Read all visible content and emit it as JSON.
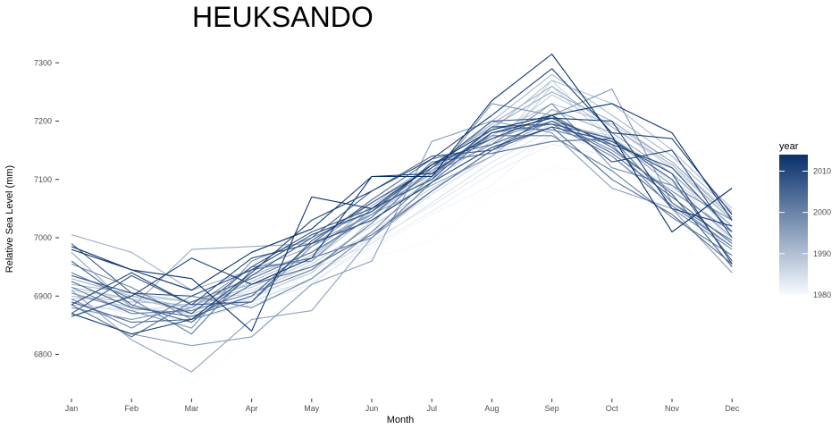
{
  "chart_data": {
    "type": "line",
    "title": "HEUKSANDO",
    "xlabel": "Month",
    "ylabel": "Relative Sea Level (mm)",
    "categories": [
      "Jan",
      "Feb",
      "Mar",
      "Apr",
      "May",
      "Jun",
      "Jul",
      "Aug",
      "Sep",
      "Oct",
      "Nov",
      "Dec"
    ],
    "y_ticks": [
      6800,
      6900,
      7000,
      7100,
      7200,
      7300
    ],
    "ylim": [
      6730,
      7330
    ],
    "grid": false,
    "legend": {
      "title": "year",
      "type": "colorbar",
      "placement": "right",
      "range": [
        1980,
        2014
      ],
      "ticks": [
        1980,
        1990,
        2000,
        2010
      ],
      "color_low": "#f7fbff",
      "color_high": "#08306b"
    },
    "series": [
      {
        "year": 1980,
        "values": [
          6880,
          6870,
          6750,
          6830,
          6935,
          6965,
          6995,
          7075,
          7120,
          7115,
          7040,
          6940
        ]
      },
      {
        "year": 1981,
        "values": [
          6875,
          6860,
          6880,
          6890,
          6940,
          6980,
          7040,
          7090,
          7180,
          7165,
          7075,
          6965
        ]
      },
      {
        "year": 1982,
        "values": [
          6865,
          6890,
          6905,
          6900,
          6925,
          6985,
          7045,
          7110,
          7160,
          7140,
          7060,
          6980
        ]
      },
      {
        "year": 1983,
        "values": [
          6890,
          6870,
          6860,
          6885,
          6920,
          6995,
          7055,
          7120,
          7175,
          7150,
          7085,
          6990
        ]
      },
      {
        "year": 1984,
        "values": [
          6900,
          6880,
          6870,
          6895,
          6945,
          6990,
          7060,
          7130,
          7185,
          7170,
          7100,
          7000
        ]
      },
      {
        "year": 1985,
        "values": [
          6910,
          6895,
          6880,
          6890,
          6930,
          7000,
          7075,
          7140,
          7195,
          7175,
          7095,
          6995
        ]
      },
      {
        "year": 1986,
        "values": [
          6885,
          6875,
          6885,
          6910,
          6950,
          7010,
          7080,
          7150,
          7270,
          7170,
          7110,
          7010
        ]
      },
      {
        "year": 1987,
        "values": [
          6895,
          6900,
          6890,
          6905,
          6955,
          7020,
          7085,
          7140,
          7260,
          7165,
          7100,
          7020
        ]
      },
      {
        "year": 1988,
        "values": [
          6905,
          6880,
          6870,
          6900,
          6940,
          7030,
          7100,
          7165,
          7245,
          7190,
          7120,
          7030
        ]
      },
      {
        "year": 1989,
        "values": [
          6900,
          6890,
          6885,
          6915,
          6960,
          7040,
          7105,
          7175,
          7230,
          7195,
          7130,
          7040
        ]
      },
      {
        "year": 1990,
        "values": [
          6915,
          6895,
          6875,
          6925,
          6970,
          7045,
          7110,
          7185,
          7270,
          7230,
          7150,
          7050
        ]
      },
      {
        "year": 1991,
        "values": [
          6920,
          6905,
          6890,
          6920,
          6965,
          7050,
          7115,
          7200,
          7280,
          7210,
          7140,
          7045
        ]
      },
      {
        "year": 1992,
        "values": [
          6930,
          6900,
          6880,
          6935,
          6975,
          7055,
          7120,
          7195,
          7260,
          7190,
          7125,
          7030
        ]
      },
      {
        "year": 1993,
        "values": [
          7005,
          6975,
          6910,
          6945,
          6985,
          7060,
          7125,
          7190,
          7250,
          7200,
          7130,
          7035
        ]
      },
      {
        "year": 1994,
        "values": [
          6975,
          6880,
          6980,
          6985,
          6990,
          7040,
          7090,
          7140,
          7220,
          7180,
          7110,
          7020
        ]
      },
      {
        "year": 1995,
        "values": [
          6910,
          6825,
          6770,
          6860,
          6875,
          7000,
          7080,
          7150,
          7200,
          7170,
          7090,
          7000
        ]
      },
      {
        "year": 1996,
        "values": [
          6870,
          6835,
          6815,
          6830,
          6920,
          6960,
          7165,
          7200,
          7180,
          7085,
          7050,
          6940
        ]
      },
      {
        "year": 1997,
        "values": [
          6880,
          6860,
          6880,
          6950,
          6960,
          7050,
          7100,
          7230,
          7210,
          7255,
          7060,
          6985
        ]
      },
      {
        "year": 1998,
        "values": [
          6905,
          6875,
          6845,
          6960,
          7000,
          7045,
          7110,
          7160,
          7230,
          7120,
          7090,
          7030
        ]
      },
      {
        "year": 1999,
        "values": [
          6955,
          6915,
          6860,
          6890,
          6985,
          7040,
          7115,
          7170,
          7200,
          7150,
          7080,
          7010
        ]
      },
      {
        "year": 2000,
        "values": [
          6895,
          6845,
          6900,
          6880,
          6930,
          7010,
          7105,
          7190,
          7185,
          7160,
          7050,
          6980
        ]
      },
      {
        "year": 2001,
        "values": [
          6915,
          6870,
          6875,
          6905,
          6945,
          7025,
          7120,
          7175,
          7175,
          7115,
          7035,
          6970
        ]
      },
      {
        "year": 2002,
        "values": [
          6940,
          6895,
          6835,
          6945,
          6965,
          7000,
          7095,
          7180,
          7195,
          7140,
          7055,
          6985
        ]
      },
      {
        "year": 2003,
        "values": [
          6885,
          6830,
          6890,
          6930,
          6975,
          7035,
          7130,
          7145,
          7165,
          7170,
          7060,
          6995
        ]
      },
      {
        "year": 2004,
        "values": [
          6890,
          6855,
          6860,
          6920,
          6950,
          7005,
          7080,
          7150,
          7190,
          7100,
          7040,
          6955
        ]
      },
      {
        "year": 2005,
        "values": [
          6925,
          6880,
          6865,
          6900,
          6990,
          7065,
          7135,
          7160,
          7200,
          7145,
          7070,
          6990
        ]
      },
      {
        "year": 2006,
        "values": [
          6960,
          6885,
          6855,
          6935,
          7000,
          7080,
          7140,
          7150,
          7210,
          7155,
          7075,
          6950
        ]
      },
      {
        "year": 2007,
        "values": [
          6990,
          6905,
          6870,
          6950,
          7010,
          7050,
          7100,
          7190,
          7195,
          7170,
          7100,
          6960
        ]
      },
      {
        "year": 2008,
        "values": [
          6870,
          6935,
          6885,
          6890,
          6995,
          7060,
          7120,
          7200,
          7205,
          7160,
          7120,
          7010
        ]
      },
      {
        "year": 2009,
        "values": [
          6935,
          6905,
          6900,
          6945,
          7005,
          7045,
          7125,
          7170,
          7210,
          7130,
          7150,
          7000
        ]
      },
      {
        "year": 2010,
        "values": [
          6885,
          6940,
          6885,
          6965,
          6990,
          7030,
          7095,
          7155,
          7190,
          7165,
          7110,
          6955
        ]
      },
      {
        "year": 2011,
        "values": [
          6870,
          6835,
          6860,
          6940,
          7030,
          7080,
          7135,
          7210,
          7290,
          7180,
          7170,
          7040
        ]
      },
      {
        "year": 2012,
        "values": [
          6865,
          6900,
          6965,
          6920,
          6965,
          7105,
          7110,
          7180,
          7205,
          7200,
          7050,
          7020
        ]
      },
      {
        "year": 2013,
        "values": [
          6985,
          6945,
          6930,
          6840,
          7070,
          7050,
          7125,
          7185,
          7210,
          7230,
          7180,
          7030
        ]
      },
      {
        "year": 2014,
        "values": [
          6980,
          6945,
          6910,
          6975,
          7015,
          7105,
          7105,
          7235,
          7315,
          7175,
          7010,
          7085
        ]
      }
    ]
  }
}
